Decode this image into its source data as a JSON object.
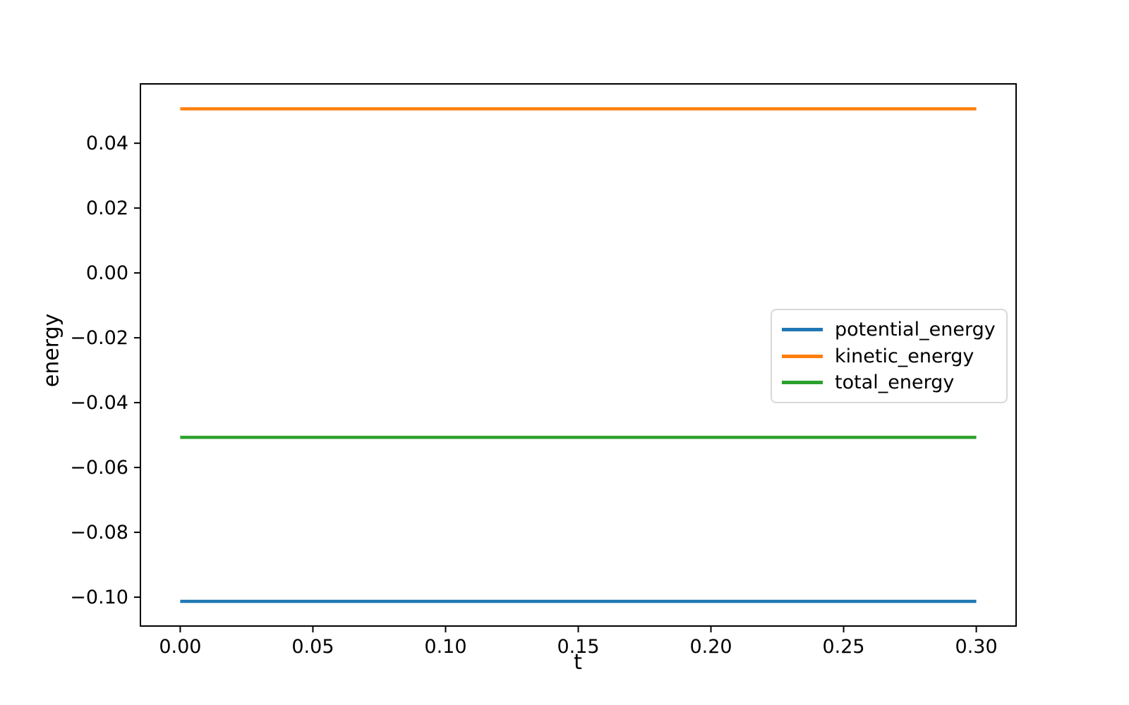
{
  "figure": {
    "background": "#ffffff",
    "xlabel": "t",
    "ylabel": "energy"
  },
  "legend": {
    "position": "center right",
    "items": [
      {
        "label": "potential_energy",
        "color": "#1f77b4"
      },
      {
        "label": "kinetic_energy",
        "color": "#ff7f0e"
      },
      {
        "label": "total_energy",
        "color": "#2ca02c"
      }
    ]
  },
  "chart_data": {
    "type": "line",
    "title": "",
    "xlabel": "t",
    "ylabel": "energy",
    "x": [
      0.0,
      0.3
    ],
    "series": [
      {
        "name": "potential_energy",
        "color": "#1f77b4",
        "values": [
          -0.1013,
          -0.1013
        ]
      },
      {
        "name": "kinetic_energy",
        "color": "#ff7f0e",
        "values": [
          0.0506,
          0.0506
        ]
      },
      {
        "name": "total_energy",
        "color": "#2ca02c",
        "values": [
          -0.0507,
          -0.0507
        ]
      }
    ],
    "xlim": [
      -0.015,
      0.315
    ],
    "ylim": [
      -0.1089,
      0.0583
    ],
    "xticks": [
      0.0,
      0.05,
      0.1,
      0.15,
      0.2,
      0.25,
      0.3
    ],
    "xtick_labels": [
      "0.00",
      "0.05",
      "0.10",
      "0.15",
      "0.20",
      "0.25",
      "0.30"
    ],
    "yticks": [
      0.04,
      0.02,
      0.0,
      -0.02,
      -0.04,
      -0.06,
      -0.08,
      -0.1
    ],
    "ytick_labels": [
      "0.04",
      "0.02",
      "0.00",
      "−0.02",
      "−0.04",
      "−0.06",
      "−0.08",
      "−0.10"
    ],
    "grid": false,
    "legend_position": "center right"
  }
}
